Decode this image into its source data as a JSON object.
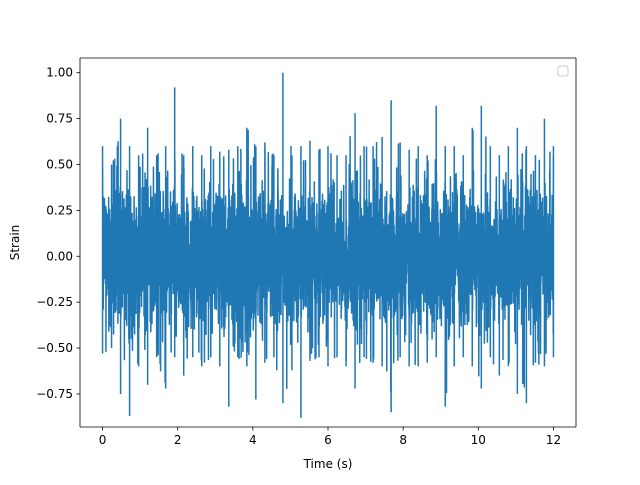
{
  "chart_data": {
    "type": "line",
    "title": "",
    "xlabel": "Time (s)",
    "ylabel": "Strain",
    "xlim": [
      -0.6,
      12.6
    ],
    "ylim": [
      -0.93,
      1.08
    ],
    "xticks": [
      0,
      2,
      4,
      6,
      8,
      10,
      12
    ],
    "xtick_labels": [
      "0",
      "2",
      "4",
      "6",
      "8",
      "10",
      "12"
    ],
    "yticks": [
      -0.75,
      -0.5,
      -0.25,
      0.0,
      0.25,
      0.5,
      0.75,
      1.0
    ],
    "ytick_labels": [
      "−0.75",
      "−0.50",
      "−0.25",
      "0.00",
      "0.25",
      "0.50",
      "0.75",
      "1.00"
    ],
    "grid": false,
    "legend": {
      "placement": "top-right",
      "entries": []
    },
    "series": [
      {
        "color": "#1f77b4",
        "x_range": [
          0,
          12
        ],
        "envelope_upper": [
          0.6,
          0.5,
          0.75,
          0.6,
          0.55,
          0.7,
          0.55,
          0.6,
          0.92,
          0.55,
          0.6,
          0.55,
          0.6,
          0.57,
          0.58,
          0.6,
          0.7,
          0.6,
          0.62,
          0.55,
          1.0,
          0.55,
          0.6,
          0.63,
          0.58,
          0.6,
          0.55,
          0.55,
          0.78,
          0.6,
          0.6,
          0.65,
          0.85,
          0.62,
          0.58,
          0.6,
          0.55,
          0.82,
          0.6,
          0.6,
          0.55,
          0.7,
          0.82,
          0.6,
          0.55,
          0.6,
          0.7,
          0.6,
          0.55,
          0.75,
          0.6
        ],
        "envelope_lower": [
          -0.53,
          -0.5,
          -0.75,
          -0.87,
          -0.6,
          -0.7,
          -0.55,
          -0.72,
          -0.55,
          -0.65,
          -0.55,
          -0.6,
          -0.55,
          -0.6,
          -0.82,
          -0.55,
          -0.6,
          -0.78,
          -0.58,
          -0.55,
          -0.8,
          -0.62,
          -0.88,
          -0.57,
          -0.55,
          -0.6,
          -0.55,
          -0.6,
          -0.72,
          -0.55,
          -0.58,
          -0.6,
          -0.85,
          -0.55,
          -0.6,
          -0.6,
          -0.58,
          -0.55,
          -0.82,
          -0.6,
          -0.55,
          -0.6,
          -0.72,
          -0.55,
          -0.65,
          -0.6,
          -0.75,
          -0.8,
          -0.58,
          -0.6,
          -0.55
        ],
        "typical_amplitude": 0.35,
        "seed": 20240517
      }
    ]
  }
}
